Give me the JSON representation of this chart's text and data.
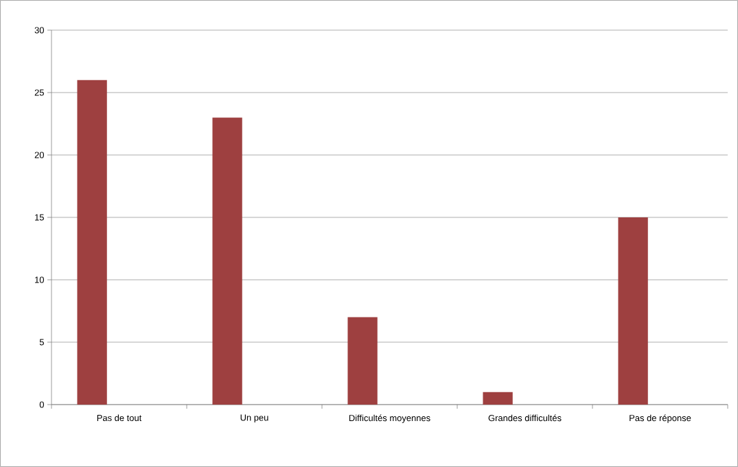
{
  "chart_data": {
    "type": "bar",
    "categories": [
      "Pas de tout",
      "Un peu",
      "Difficultés moyennes",
      "Grandes difficultés",
      "Pas de réponse"
    ],
    "values": [
      26,
      23,
      7,
      1,
      15
    ],
    "color": "#9e4040",
    "ylim": [
      0,
      30
    ],
    "yticks": [
      0,
      5,
      10,
      15,
      20,
      25,
      30
    ],
    "grid": "y"
  }
}
